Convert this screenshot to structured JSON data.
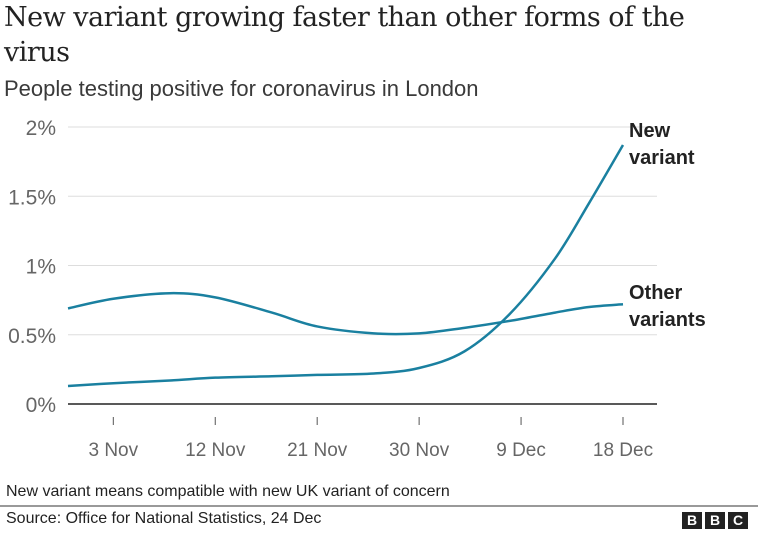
{
  "header": {
    "title": "New variant growing faster than other forms of the virus",
    "subtitle": "People testing positive for coronavirus in London"
  },
  "footer": {
    "note": "New variant means compatible with new UK variant of concern",
    "source": "Source: Office for National Statistics, 24 Dec",
    "logo": [
      "B",
      "B",
      "C"
    ]
  },
  "colors": {
    "line": "#1a80a0",
    "grid": "#dddddd",
    "axis": "#222222",
    "tick_text": "#666666",
    "label_text": "#222222"
  },
  "chart_data": {
    "type": "line",
    "title": "New variant growing faster than other forms of the virus",
    "subtitle": "People testing positive for coronavirus in London",
    "xlabel": "",
    "ylabel": "",
    "x_tick_labels": [
      "3 Nov",
      "12 Nov",
      "21 Nov",
      "30 Nov",
      "9 Dec",
      "18 Dec"
    ],
    "x_range_days": [
      -4,
      45
    ],
    "x_tick_days": [
      0,
      9,
      18,
      27,
      36,
      45
    ],
    "y_tick_labels": [
      "0%",
      "0.5%",
      "1%",
      "1.5%",
      "2%"
    ],
    "y_ticks": [
      0,
      0.5,
      1,
      1.5,
      2
    ],
    "ylim": [
      0,
      2
    ],
    "grid": true,
    "legend": "direct-labels-right",
    "series": [
      {
        "name": "New variant",
        "label_lines": [
          "New",
          "variant"
        ],
        "x_days": [
          -4,
          0,
          5,
          9,
          14,
          18,
          23,
          27,
          31,
          35,
          39,
          42,
          45
        ],
        "values": [
          0.13,
          0.15,
          0.17,
          0.19,
          0.2,
          0.21,
          0.22,
          0.26,
          0.38,
          0.65,
          1.05,
          1.45,
          1.87
        ]
      },
      {
        "name": "Other variants",
        "label_lines": [
          "Other",
          "variants"
        ],
        "x_days": [
          -4,
          0,
          5,
          9,
          14,
          18,
          23,
          27,
          31,
          35,
          39,
          42,
          45
        ],
        "values": [
          0.69,
          0.76,
          0.8,
          0.77,
          0.66,
          0.56,
          0.51,
          0.51,
          0.55,
          0.6,
          0.66,
          0.7,
          0.72
        ]
      }
    ]
  }
}
